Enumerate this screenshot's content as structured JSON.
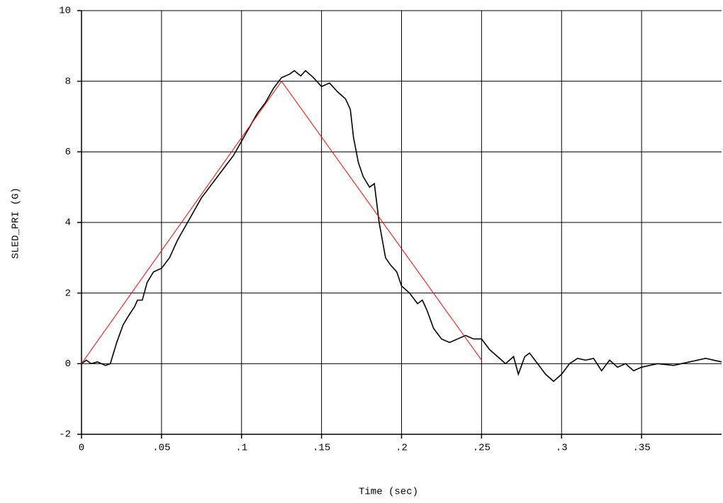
{
  "chart_data": {
    "type": "line",
    "xlabel": "Time (sec)",
    "ylabel": "SLED_PRI (G)",
    "xlim": [
      0,
      0.4
    ],
    "ylim": [
      -2,
      10
    ],
    "xticks": [
      0,
      {
        "value": 0.05,
        "label": ".05"
      },
      {
        "value": 0.1,
        "label": ".1"
      },
      {
        "value": 0.15,
        "label": ".15"
      },
      {
        "value": 0.2,
        "label": ".2"
      },
      {
        "value": 0.25,
        "label": ".25"
      },
      {
        "value": 0.3,
        "label": ".3"
      },
      {
        "value": 0.35,
        "label": ".35"
      }
    ],
    "yticks": [
      -2,
      0,
      2,
      4,
      6,
      8,
      10
    ],
    "grid": true,
    "series": [
      {
        "color": "#000000",
        "x": [
          0,
          0.003,
          0.006,
          0.01,
          0.015,
          0.018,
          0.022,
          0.026,
          0.03,
          0.033,
          0.035,
          0.038,
          0.041,
          0.045,
          0.05,
          0.055,
          0.06,
          0.065,
          0.07,
          0.075,
          0.08,
          0.085,
          0.09,
          0.095,
          0.1,
          0.105,
          0.11,
          0.115,
          0.12,
          0.125,
          0.13,
          0.133,
          0.137,
          0.14,
          0.145,
          0.15,
          0.155,
          0.16,
          0.165,
          0.168,
          0.17,
          0.173,
          0.176,
          0.18,
          0.183,
          0.186,
          0.19,
          0.193,
          0.197,
          0.2,
          0.205,
          0.21,
          0.213,
          0.216,
          0.22,
          0.225,
          0.23,
          0.235,
          0.24,
          0.245,
          0.25,
          0.255,
          0.26,
          0.265,
          0.27,
          0.273,
          0.277,
          0.28,
          0.285,
          0.29,
          0.295,
          0.3,
          0.305,
          0.31,
          0.315,
          0.32,
          0.325,
          0.33,
          0.335,
          0.34,
          0.345,
          0.35,
          0.36,
          0.37,
          0.38,
          0.39,
          0.4
        ],
        "values": [
          0,
          0.1,
          0,
          0.05,
          -0.05,
          0,
          0.6,
          1.1,
          1.4,
          1.6,
          1.8,
          1.8,
          2.3,
          2.6,
          2.7,
          3.0,
          3.5,
          3.9,
          4.3,
          4.7,
          5.0,
          5.3,
          5.6,
          5.9,
          6.3,
          6.7,
          7.1,
          7.4,
          7.8,
          8.1,
          8.2,
          8.3,
          8.15,
          8.3,
          8.1,
          7.85,
          7.95,
          7.7,
          7.5,
          7.2,
          6.4,
          5.7,
          5.3,
          5.0,
          5.1,
          4.0,
          3.0,
          2.8,
          2.6,
          2.2,
          2.0,
          1.7,
          1.8,
          1.5,
          1.0,
          0.7,
          0.6,
          0.7,
          0.8,
          0.7,
          0.7,
          0.4,
          0.2,
          0.0,
          0.2,
          -0.3,
          0.2,
          0.3,
          0.0,
          -0.3,
          -0.5,
          -0.3,
          0.0,
          0.15,
          0.1,
          0.15,
          -0.2,
          0.1,
          -0.1,
          0.0,
          -0.2,
          -0.1,
          0.0,
          -0.05,
          0.05,
          0.15,
          0.05
        ]
      },
      {
        "color": "#ff0000",
        "x": [
          0,
          0.125,
          0.25
        ],
        "values": [
          0,
          8,
          0.1
        ]
      }
    ]
  }
}
